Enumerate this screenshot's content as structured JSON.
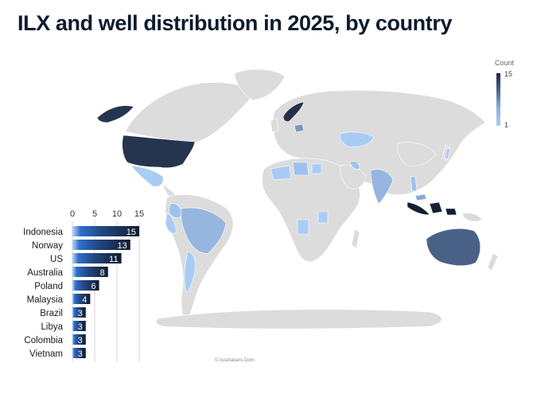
{
  "title": "ILX and well distribution in 2025, by country",
  "legend": {
    "title": "Count",
    "max": "15",
    "min": "1"
  },
  "attribution": "© Australians Dom",
  "colors": {
    "land": "#dcdcdc",
    "low": "#a9ccf4",
    "high": "#1a2740"
  },
  "chart_data": {
    "type": "bar",
    "orientation": "horizontal",
    "categories": [
      "Indonesia",
      "Norway",
      "US",
      "Australia",
      "Poland",
      "Malaysia",
      "Brazil",
      "Libya",
      "Colombia",
      "Vietnam"
    ],
    "values": [
      15,
      13,
      11,
      8,
      6,
      4,
      3,
      3,
      3,
      3
    ],
    "xlim": [
      0,
      15
    ],
    "xticks": [
      0,
      5,
      10,
      15
    ],
    "grid": true,
    "data_labels": true
  }
}
